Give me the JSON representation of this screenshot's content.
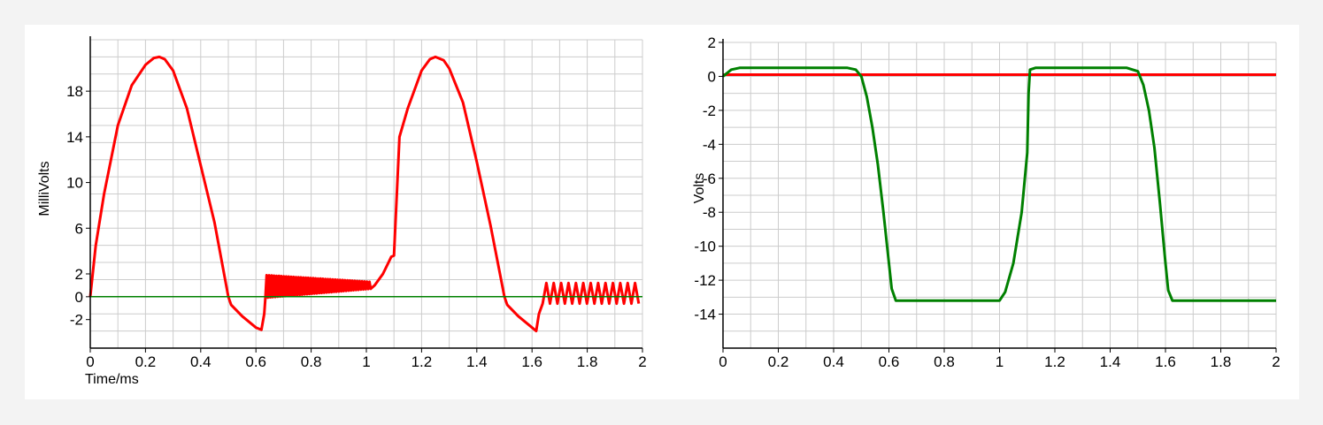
{
  "chart_data": [
    {
      "type": "line",
      "xlabel": "Time/ms",
      "ylabel": "MilliVolts",
      "xlim": [
        0,
        2
      ],
      "ylim": [
        -4.5,
        22.5
      ],
      "xticks": [
        0,
        0.2,
        0.4,
        0.6,
        0.8,
        1,
        1.2,
        1.4,
        1.6,
        1.8,
        2
      ],
      "xtick_labels": [
        "0",
        "0.2",
        "0.4",
        "0.6",
        "0.8",
        "1",
        "1.2",
        "1.4",
        "1.6",
        "1.8",
        "2"
      ],
      "yticks": [
        -2,
        0,
        2,
        6,
        10,
        14,
        18
      ],
      "ytick_labels": [
        "-2",
        "0",
        "2",
        "6",
        "10",
        "14",
        "18"
      ],
      "grid": true,
      "series": [
        {
          "color": "#ff0000",
          "x": [
            0,
            0.02,
            0.05,
            0.1,
            0.15,
            0.2,
            0.23,
            0.25,
            0.27,
            0.3,
            0.35,
            0.4,
            0.45,
            0.5,
            0.51,
            0.55,
            0.6,
            0.62,
            0.63,
            1.03,
            1.06,
            1.08,
            1.09,
            1.1,
            1.12,
            1.15,
            1.2,
            1.23,
            1.25,
            1.28,
            1.3,
            1.35,
            1.4,
            1.45,
            1.5,
            1.51,
            1.55,
            1.6,
            1.615,
            1.625
          ],
          "values": [
            0,
            4.5,
            9,
            15,
            18.5,
            20.3,
            20.9,
            21,
            20.8,
            19.8,
            16.5,
            11.5,
            6.5,
            0,
            -0.7,
            -1.7,
            -2.7,
            -2.9,
            -1.5,
            1,
            2,
            3,
            3.5,
            3.6,
            14,
            16.5,
            19.8,
            20.8,
            21,
            20.7,
            20,
            17,
            11.8,
            6.2,
            0,
            -0.7,
            -1.7,
            -2.7,
            -3,
            -1.5
          ],
          "oscillation_segments": [
            {
              "x_start": 0.63,
              "x_end": 1.02,
              "baseline_start": 0.9,
              "baseline_end": 1.0,
              "amplitude_start": 1.0,
              "amplitude_end": 0.3,
              "cycles": 44
            },
            {
              "x_start": 1.625,
              "x_end": 2.0,
              "baseline_start": 0.3,
              "baseline_end": 0.3,
              "amplitude_start": 0.9,
              "amplitude_end": 0.9,
              "cycles": 14
            }
          ]
        },
        {
          "color": "#008000",
          "x": [
            0,
            2
          ],
          "values": [
            0,
            0
          ]
        }
      ]
    },
    {
      "type": "line",
      "xlabel": "",
      "ylabel": "Volts",
      "xlim": [
        0,
        2
      ],
      "ylim": [
        -16,
        2
      ],
      "xticks": [
        0,
        0.2,
        0.4,
        0.6,
        0.8,
        1,
        1.2,
        1.4,
        1.6,
        1.8,
        2
      ],
      "xtick_labels": [
        "0",
        "0.2",
        "0.4",
        "0.6",
        "0.8",
        "1",
        "1.2",
        "1.4",
        "1.6",
        "1.8",
        "2"
      ],
      "yticks": [
        2,
        0,
        -2,
        -4,
        -6,
        -8,
        -10,
        -12,
        -14
      ],
      "ytick_labels": [
        "2",
        "0",
        "-2",
        "-4",
        "-6",
        "-8",
        "-10",
        "-12",
        "-14"
      ],
      "grid": true,
      "series": [
        {
          "color": "#ff0000",
          "x": [
            0,
            2
          ],
          "values": [
            0.1,
            0.1
          ]
        },
        {
          "color": "#008000",
          "x": [
            0,
            0.03,
            0.06,
            0.2,
            0.45,
            0.48,
            0.5,
            0.52,
            0.54,
            0.56,
            0.58,
            0.6,
            0.61,
            0.625,
            1.0,
            1.02,
            1.05,
            1.08,
            1.1,
            1.105,
            1.11,
            1.13,
            1.46,
            1.5,
            1.52,
            1.54,
            1.56,
            1.58,
            1.6,
            1.61,
            1.625,
            2.0
          ],
          "values": [
            0,
            0.4,
            0.5,
            0.5,
            0.5,
            0.4,
            0,
            -1.2,
            -3,
            -5.2,
            -8,
            -11,
            -12.5,
            -13.2,
            -13.2,
            -12.7,
            -11,
            -8,
            -4.5,
            -1,
            0.4,
            0.5,
            0.5,
            0.3,
            -0.5,
            -2,
            -4.2,
            -7.5,
            -11,
            -12.6,
            -13.2,
            -13.2
          ]
        }
      ]
    }
  ]
}
